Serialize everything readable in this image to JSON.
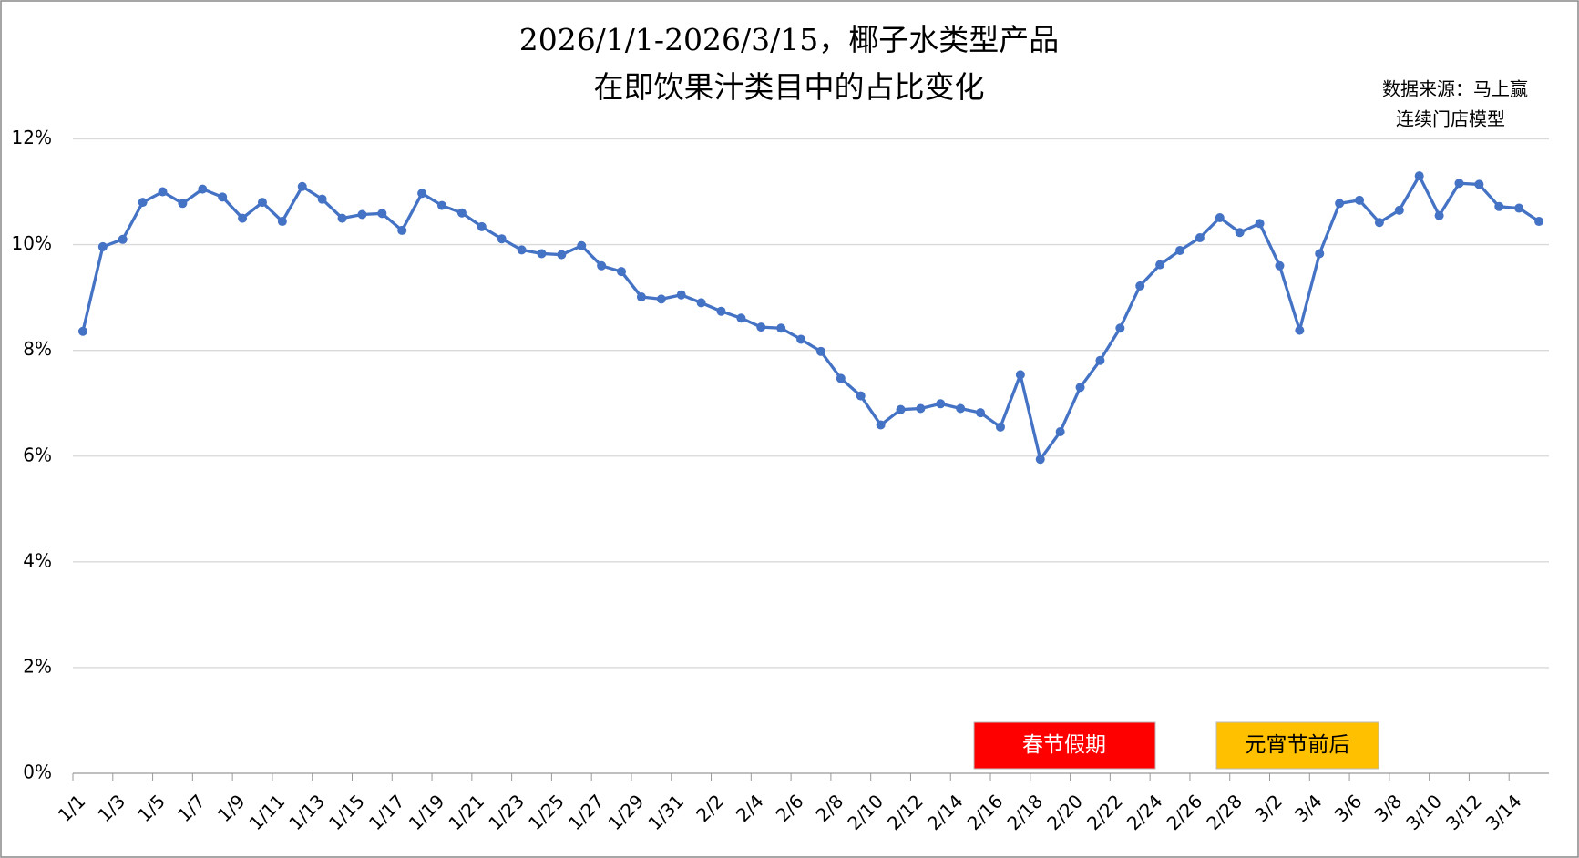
{
  "chart_data": {
    "type": "line",
    "title": [
      "2026/1/1-2026/3/15，椰子水类型产品",
      "在即饮果汁类目中的占比变化"
    ],
    "source": [
      "数据来源：马上赢",
      "连续门店模型"
    ],
    "annotations": [
      "春节假期",
      "元宵节前后"
    ],
    "categories": [
      "1/1",
      null,
      "1/3",
      null,
      "1/5",
      null,
      "1/7",
      null,
      "1/9",
      null,
      "1/11",
      null,
      "1/13",
      null,
      "1/15",
      null,
      "1/17",
      null,
      "1/19",
      null,
      "1/21",
      null,
      "1/23",
      null,
      "1/25",
      null,
      "1/27",
      null,
      "1/29",
      null,
      "1/31",
      null,
      "2/2",
      null,
      "2/4",
      null,
      "2/6",
      null,
      "2/8",
      null,
      "2/10",
      null,
      "2/12",
      null,
      "2/14",
      null,
      "2/16",
      null,
      "2/18",
      null,
      "2/20",
      null,
      "2/22",
      null,
      "2/24",
      null,
      "2/26",
      null,
      "2/28",
      null,
      "3/2",
      null,
      "3/4",
      null,
      "3/6",
      null,
      "3/8",
      null,
      "3/10",
      null,
      "3/12",
      null,
      "3/14",
      null
    ],
    "series": [
      {
        "color": "#4472c4",
        "values": [
          8.36,
          9.96,
          10.1,
          10.8,
          11.0,
          10.78,
          11.05,
          10.9,
          10.5,
          10.8,
          10.44,
          11.1,
          10.86,
          10.5,
          10.57,
          10.59,
          10.27,
          10.97,
          10.74,
          10.6,
          10.34,
          10.11,
          9.9,
          9.83,
          9.81,
          9.98,
          9.6,
          9.49,
          9.01,
          8.97,
          9.05,
          8.9,
          8.74,
          8.61,
          8.44,
          8.42,
          8.21,
          7.98,
          7.47,
          7.14,
          6.59,
          6.88,
          6.9,
          6.99,
          6.9,
          6.82,
          6.55,
          7.54,
          5.94,
          6.46,
          7.3,
          7.81,
          8.42,
          9.22,
          9.62,
          9.89,
          10.13,
          10.51,
          10.23,
          10.4,
          9.6,
          8.38,
          9.83,
          10.78,
          10.84,
          10.42,
          10.65,
          11.3,
          10.55,
          11.16,
          11.14,
          10.72,
          10.69,
          10.44
        ]
      }
    ],
    "ylim": [
      0,
      12
    ],
    "yticks": [
      {
        "value": 0,
        "label": "0%"
      },
      {
        "value": 2,
        "label": "2%"
      },
      {
        "value": 4,
        "label": "4%"
      },
      {
        "value": 6,
        "label": "6%"
      },
      {
        "value": 8,
        "label": "8%"
      },
      {
        "value": 10,
        "label": "10%"
      },
      {
        "value": 12,
        "label": "12%"
      }
    ],
    "grid": true
  }
}
